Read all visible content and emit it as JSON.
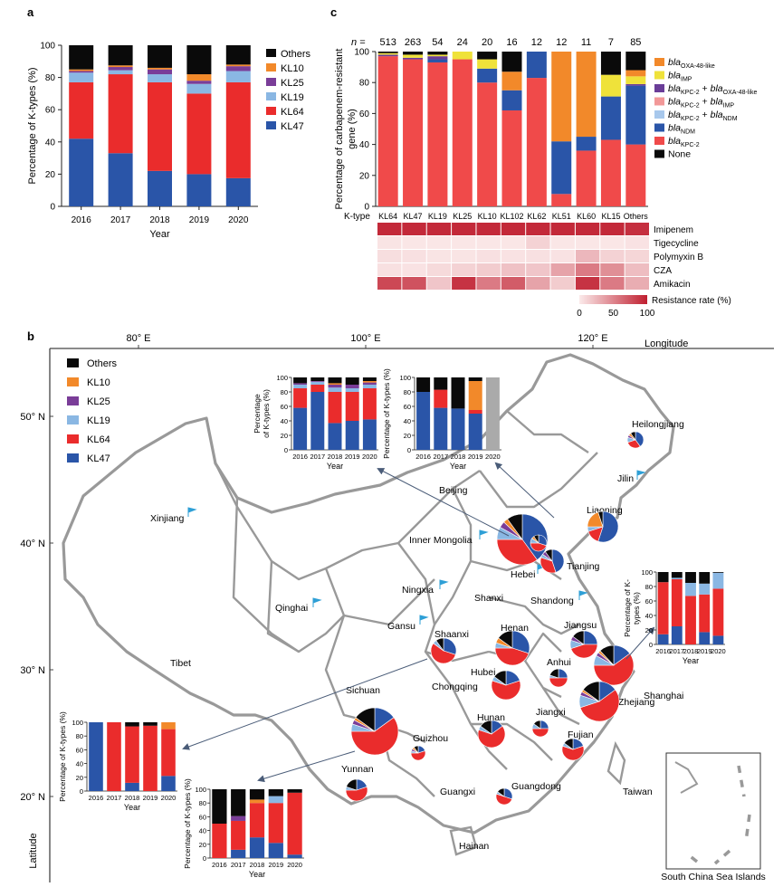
{
  "colors": {
    "KL47": "#2a55a8",
    "KL64": "#ea2c2c",
    "KL19": "#8ab7e3",
    "KL25": "#7a3d98",
    "KL10": "#f2892a",
    "Others": "#0a0a0a",
    "blaKPC2": "#f04a4a",
    "blaNDM": "#2a55a8",
    "KPC2_NDM": "#a8c8ec",
    "KPC2_IMP": "#f29898",
    "KPC2_OXA": "#6a3d98",
    "blaIMP": "#efe23a",
    "OXA48": "#f2892a",
    "None": "#0a0a0a",
    "na": "#aaaaaa",
    "heat_low": "#fbeaea",
    "heat_high": "#c01f30",
    "map_border": "#999999"
  },
  "panel_a": {
    "label": "a",
    "chart_data": {
      "type": "bar",
      "stacked": true,
      "categories": [
        "2016",
        "2017",
        "2018",
        "2019",
        "2020"
      ],
      "xlabel": "Year",
      "ylabel": "Percentage of K-types (%)",
      "ylim": [
        0,
        100
      ],
      "yticks": [
        "0",
        "20",
        "40",
        "60",
        "80",
        "100"
      ],
      "series": [
        {
          "name": "KL47",
          "values": [
            42,
            33,
            22,
            20,
            17.5
          ]
        },
        {
          "name": "KL64",
          "values": [
            35,
            49,
            55,
            50,
            59.5
          ]
        },
        {
          "name": "KL19",
          "values": [
            6,
            2.5,
            5,
            6,
            7
          ]
        },
        {
          "name": "KL25",
          "values": [
            1,
            2,
            3,
            2,
            3
          ]
        },
        {
          "name": "KL10",
          "values": [
            1,
            1,
            1,
            4,
            1
          ]
        },
        {
          "name": "Others",
          "values": [
            15,
            12.5,
            14,
            18,
            12
          ]
        }
      ],
      "legend": [
        "Others",
        "KL10",
        "KL25",
        "KL19",
        "KL64",
        "KL47"
      ]
    }
  },
  "panel_c": {
    "label": "c",
    "n_label": "n =",
    "n_values": [
      "513",
      "263",
      "54",
      "24",
      "20",
      "16",
      "12",
      "12",
      "11",
      "7",
      "85"
    ],
    "ktype_label": "K-type",
    "chart_data": {
      "type": "bar",
      "stacked": true,
      "categories": [
        "KL64",
        "KL47",
        "KL19",
        "KL25",
        "KL10",
        "KL102",
        "KL62",
        "KL51",
        "KL60",
        "KL15",
        "Others"
      ],
      "ylabel": "Percentage of carbapenem-resistant gene (%)",
      "ylim": [
        0,
        100
      ],
      "yticks": [
        "0",
        "20",
        "40",
        "60",
        "80",
        "100"
      ],
      "series": [
        {
          "name": "blaKPC-2",
          "values": [
            97,
            95,
            93,
            95,
            80,
            62,
            83,
            8,
            36,
            43,
            40
          ]
        },
        {
          "name": "blaNDM",
          "values": [
            0,
            0,
            2,
            0,
            9,
            13,
            17,
            34,
            9,
            28,
            38
          ]
        },
        {
          "name": "blaKPC-2 + blaNDM",
          "values": [
            0,
            0,
            0,
            0,
            0,
            0,
            0,
            0,
            0,
            0,
            0
          ]
        },
        {
          "name": "blaKPC-2 + blaIMP",
          "values": [
            0,
            0,
            0,
            0,
            0,
            0,
            0,
            0,
            0,
            0,
            0
          ]
        },
        {
          "name": "blaKPC-2 + blaOXA-48-like",
          "values": [
            1,
            1,
            2,
            0,
            0,
            0,
            0,
            0,
            0,
            0,
            1
          ]
        },
        {
          "name": "blaIMP",
          "values": [
            1,
            2,
            1,
            5,
            6,
            0,
            0,
            0,
            0,
            14,
            5
          ]
        },
        {
          "name": "blaOXA-48-like",
          "values": [
            0,
            0,
            0,
            0,
            0,
            12,
            0,
            58,
            55,
            0,
            4
          ]
        },
        {
          "name": "None",
          "values": [
            1,
            2,
            2,
            0,
            5,
            13,
            0,
            0,
            0,
            15,
            12
          ]
        }
      ],
      "legend": [
        {
          "pre": "bla",
          "sub": "OXA-48-like",
          "mid": "",
          "pre2": "",
          "sub2": "",
          "key": "OXA48"
        },
        {
          "pre": "bla",
          "sub": "IMP",
          "mid": "",
          "pre2": "",
          "sub2": "",
          "key": "blaIMP"
        },
        {
          "pre": "bla",
          "sub": "KPC-2",
          "mid": " + ",
          "pre2": "bla",
          "sub2": "OXA-48-like",
          "key": "KPC2_OXA"
        },
        {
          "pre": "bla",
          "sub": "KPC-2",
          "mid": " + ",
          "pre2": "bla",
          "sub2": "IMP",
          "key": "KPC2_IMP"
        },
        {
          "pre": "bla",
          "sub": "KPC-2",
          "mid": " + ",
          "pre2": "bla",
          "sub2": "NDM",
          "key": "KPC2_NDM"
        },
        {
          "pre": "bla",
          "sub": "NDM",
          "mid": "",
          "pre2": "",
          "sub2": "",
          "key": "blaNDM"
        },
        {
          "pre": "bla",
          "sub": "KPC-2",
          "mid": "",
          "pre2": "",
          "sub2": "",
          "key": "blaKPC2"
        },
        {
          "pre": "None",
          "sub": "",
          "mid": "",
          "pre2": "",
          "sub2": "",
          "key": "None"
        }
      ]
    },
    "heatmap": {
      "type": "heatmap",
      "rows": [
        "Imipenem",
        "Tigecycline",
        "Polymyxin B",
        "CZA",
        "Amikacin"
      ],
      "values": [
        [
          95,
          95,
          95,
          95,
          95,
          95,
          95,
          95,
          95,
          95,
          92
        ],
        [
          3,
          2,
          2,
          2,
          2,
          2,
          12,
          2,
          2,
          2,
          4
        ],
        [
          6,
          5,
          3,
          3,
          5,
          4,
          5,
          4,
          25,
          12,
          10
        ],
        [
          5,
          4,
          8,
          12,
          15,
          20,
          18,
          35,
          55,
          45,
          22
        ],
        [
          80,
          75,
          18,
          90,
          55,
          70,
          35,
          15,
          90,
          55,
          30
        ]
      ],
      "scale_label": "Resistance rate (%)",
      "scale_ticks": [
        "0",
        "50",
        "100"
      ]
    }
  },
  "panel_b": {
    "label": "b",
    "longitude_label": "Longitude",
    "latitude_label": "Latitude",
    "lon_ticks": [
      "80° E",
      "100° E",
      "120° E"
    ],
    "lat_ticks": [
      "50° N",
      "40° N",
      "30° N",
      "20° N"
    ],
    "legend": [
      "Others",
      "KL10",
      "KL25",
      "KL19",
      "KL64",
      "KL47"
    ],
    "regions": [
      "Heilongjiang",
      "Jilin",
      "Liaoning",
      "Beijing",
      "Inner Mongolia",
      "Xinjiang",
      "Tianjing",
      "Hebei",
      "Ningxia",
      "Shanxi",
      "Shandong",
      "Qinghai",
      "Gansu",
      "Shaanxi",
      "Henan",
      "Jiangsu",
      "Tibet",
      "Anhui",
      "Shanghai",
      "Hubei",
      "Chongqing",
      "Sichuan",
      "Zhejiang",
      "Jiangxi",
      "Hunan",
      "Guizhou",
      "Fujian",
      "Yunnan",
      "Guangxi",
      "Guangdong",
      "Taiwan",
      "Hainan"
    ],
    "south_china_sea": "South China Sea Islands",
    "pies": [
      {
        "name": "Heilongjiang",
        "values": [
          40,
          30,
          10,
          5,
          5,
          10
        ]
      },
      {
        "name": "Liaoning",
        "values": [
          55,
          15,
          5,
          0,
          20,
          5
        ]
      },
      {
        "name": "Beijing",
        "values": [
          40,
          35,
          8,
          4,
          3,
          10
        ]
      },
      {
        "name": "Tianjing",
        "values": [
          45,
          35,
          5,
          5,
          0,
          10
        ]
      },
      {
        "name": "Hebei",
        "values": [
          30,
          45,
          10,
          0,
          5,
          10
        ]
      },
      {
        "name": "Shaanxi",
        "values": [
          30,
          55,
          5,
          0,
          0,
          10
        ]
      },
      {
        "name": "Henan",
        "values": [
          30,
          45,
          5,
          0,
          5,
          15
        ]
      },
      {
        "name": "Jiangsu",
        "values": [
          25,
          45,
          10,
          5,
          0,
          15
        ]
      },
      {
        "name": "Anhui",
        "values": [
          25,
          50,
          5,
          0,
          0,
          20
        ]
      },
      {
        "name": "Shanghai",
        "values": [
          15,
          60,
          8,
          3,
          2,
          12
        ]
      },
      {
        "name": "Hubei",
        "values": [
          20,
          60,
          5,
          0,
          0,
          15
        ]
      },
      {
        "name": "Sichuan",
        "values": [
          15,
          60,
          5,
          3,
          2,
          15
        ]
      },
      {
        "name": "Zhejiang",
        "values": [
          15,
          55,
          10,
          3,
          2,
          15
        ]
      },
      {
        "name": "Jiangxi",
        "values": [
          25,
          50,
          10,
          0,
          0,
          15
        ]
      },
      {
        "name": "Hunan",
        "values": [
          15,
          65,
          5,
          0,
          0,
          15
        ]
      },
      {
        "name": "Guizhou",
        "values": [
          20,
          55,
          5,
          5,
          5,
          10
        ]
      },
      {
        "name": "Fujian",
        "values": [
          20,
          60,
          5,
          0,
          0,
          15
        ]
      },
      {
        "name": "Yunnan",
        "values": [
          20,
          55,
          5,
          0,
          0,
          20
        ]
      },
      {
        "name": "Guangdong",
        "values": [
          30,
          50,
          5,
          0,
          0,
          15
        ]
      }
    ],
    "minis": [
      {
        "id": "beijing",
        "ylabel": "Percentage of K-types (%)",
        "xlabel": "Year",
        "categories": [
          "2016",
          "2017",
          "2018",
          "2019",
          "2020"
        ],
        "yticks": [
          "0",
          "20",
          "40",
          "60",
          "80",
          "100"
        ],
        "series": [
          [
            58,
            80,
            37,
            40,
            42
          ],
          [
            27,
            10,
            43,
            40,
            43
          ],
          [
            5,
            4,
            6,
            5,
            5
          ],
          [
            2,
            1,
            4,
            5,
            3
          ],
          [
            0,
            0,
            2,
            0,
            2
          ],
          [
            8,
            5,
            8,
            10,
            5
          ]
        ]
      },
      {
        "id": "liaoning",
        "ylabel": "Percentage of K-types (%)",
        "xlabel": "Year",
        "categories": [
          "2016",
          "2017",
          "2018",
          "2019",
          "2020"
        ],
        "yticks": [
          "0",
          "20",
          "40",
          "60",
          "80",
          "100"
        ],
        "grey_last": true,
        "series": [
          [
            80,
            58,
            57,
            50,
            0
          ],
          [
            0,
            25,
            0,
            5,
            0
          ],
          [
            0,
            0,
            0,
            0,
            0
          ],
          [
            0,
            0,
            0,
            0,
            0
          ],
          [
            0,
            0,
            0,
            40,
            0
          ],
          [
            20,
            17,
            43,
            5,
            0
          ]
        ]
      },
      {
        "id": "shanghai",
        "ylabel": "Percentage of K-types (%)",
        "xlabel": "Year",
        "categories": [
          "2016",
          "2017",
          "2018",
          "2019",
          "2020"
        ],
        "yticks": [
          "0",
          "20",
          "40",
          "60",
          "80",
          "100"
        ],
        "series": [
          [
            14,
            25,
            0,
            17,
            12
          ],
          [
            72,
            65,
            67,
            52,
            65
          ],
          [
            0,
            2,
            18,
            15,
            22
          ],
          [
            0,
            0,
            0,
            0,
            0
          ],
          [
            0,
            0,
            0,
            0,
            0
          ],
          [
            14,
            8,
            15,
            16,
            1
          ]
        ]
      },
      {
        "id": "shaanxi",
        "ylabel": "Percentage of K-types (%)",
        "xlabel": "Year",
        "categories": [
          "2016",
          "2017",
          "2018",
          "2019",
          "2020"
        ],
        "yticks": [
          "0",
          "20",
          "40",
          "60",
          "80",
          "100"
        ],
        "series": [
          [
            100,
            0,
            12,
            0,
            22
          ],
          [
            0,
            100,
            82,
            95,
            68
          ],
          [
            0,
            0,
            0,
            0,
            0
          ],
          [
            0,
            0,
            0,
            0,
            0
          ],
          [
            0,
            0,
            0,
            0,
            10
          ],
          [
            0,
            0,
            6,
            5,
            0
          ]
        ]
      },
      {
        "id": "sichuan",
        "ylabel": "Percentage of K-types (%)",
        "xlabel": "Year",
        "categories": [
          "2016",
          "2017",
          "2018",
          "2019",
          "2020"
        ],
        "yticks": [
          "0",
          "20",
          "40",
          "60",
          "80",
          "100"
        ],
        "series": [
          [
            0,
            12,
            30,
            22,
            5
          ],
          [
            50,
            42,
            50,
            58,
            90
          ],
          [
            0,
            0,
            0,
            10,
            0
          ],
          [
            0,
            7,
            0,
            0,
            0
          ],
          [
            0,
            0,
            5,
            0,
            0
          ],
          [
            50,
            39,
            15,
            10,
            5
          ]
        ]
      }
    ]
  }
}
